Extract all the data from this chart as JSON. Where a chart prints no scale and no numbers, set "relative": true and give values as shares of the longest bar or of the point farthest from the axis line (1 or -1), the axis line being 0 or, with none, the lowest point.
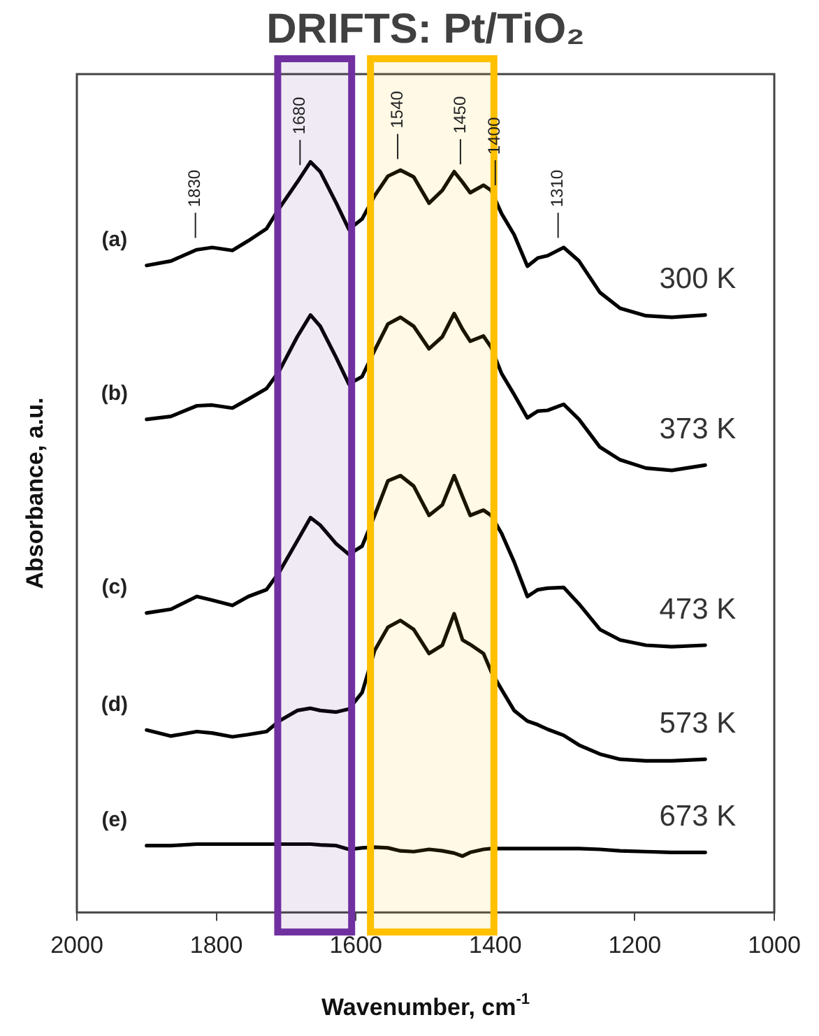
{
  "chart_data": {
    "type": "line",
    "title": "DRIFTS: Pt/TiO₂",
    "xlabel": "Wavenumber, cm$^{-1}$",
    "ylabel": "Absorbance, a.u.",
    "relative": true,
    "marker": "none",
    "line_style": "solid",
    "legend": false,
    "xlim": [
      2000,
      1000
    ],
    "xticks": [
      2000,
      1800,
      1600,
      1400,
      1200,
      1000
    ],
    "x": [
      1900,
      1865,
      1828,
      1806,
      1777,
      1754,
      1728,
      1710,
      1684,
      1665,
      1651,
      1628,
      1610,
      1591,
      1573,
      1554,
      1536,
      1517,
      1495,
      1476,
      1459,
      1447,
      1436,
      1417,
      1406,
      1391,
      1373,
      1354,
      1339,
      1325,
      1302,
      1280,
      1250,
      1221,
      1184,
      1147,
      1099
    ],
    "series": [
      {
        "name": "300 K",
        "color": "#000000",
        "values": [
          0.862,
          0.868,
          0.883,
          0.886,
          0.882,
          0.895,
          0.911,
          0.938,
          0.973,
          1.0,
          0.987,
          0.945,
          0.91,
          0.924,
          0.955,
          0.981,
          0.989,
          0.98,
          0.945,
          0.962,
          0.987,
          0.973,
          0.959,
          0.969,
          0.962,
          0.931,
          0.903,
          0.861,
          0.872,
          0.875,
          0.886,
          0.868,
          0.826,
          0.805,
          0.795,
          0.793,
          0.796
        ]
      },
      {
        "name": "373 K",
        "color": "#000000",
        "values": [
          0.657,
          0.661,
          0.675,
          0.676,
          0.672,
          0.684,
          0.698,
          0.721,
          0.767,
          0.796,
          0.781,
          0.739,
          0.704,
          0.714,
          0.749,
          0.784,
          0.793,
          0.781,
          0.751,
          0.767,
          0.798,
          0.777,
          0.761,
          0.768,
          0.753,
          0.718,
          0.69,
          0.659,
          0.668,
          0.669,
          0.677,
          0.657,
          0.62,
          0.603,
          0.592,
          0.589,
          0.596
        ]
      },
      {
        "name": "473 K",
        "color": "#000000",
        "values": [
          0.399,
          0.404,
          0.421,
          0.416,
          0.409,
          0.421,
          0.43,
          0.453,
          0.495,
          0.526,
          0.516,
          0.491,
          0.477,
          0.488,
          0.529,
          0.575,
          0.582,
          0.568,
          0.529,
          0.543,
          0.582,
          0.554,
          0.529,
          0.536,
          0.529,
          0.505,
          0.467,
          0.421,
          0.43,
          0.432,
          0.433,
          0.411,
          0.377,
          0.363,
          0.356,
          0.354,
          0.356
        ]
      },
      {
        "name": "573 K",
        "color": "#000000",
        "values": [
          0.243,
          0.235,
          0.241,
          0.239,
          0.234,
          0.237,
          0.241,
          0.255,
          0.269,
          0.272,
          0.269,
          0.267,
          0.271,
          0.293,
          0.349,
          0.38,
          0.389,
          0.377,
          0.345,
          0.356,
          0.398,
          0.363,
          0.357,
          0.345,
          0.321,
          0.297,
          0.269,
          0.255,
          0.25,
          0.244,
          0.236,
          0.223,
          0.211,
          0.204,
          0.202,
          0.202,
          0.204
        ]
      },
      {
        "name": "673 K",
        "color": "#000000",
        "values": [
          0.089,
          0.089,
          0.091,
          0.091,
          0.091,
          0.091,
          0.091,
          0.091,
          0.091,
          0.091,
          0.09,
          0.089,
          0.084,
          0.086,
          0.087,
          0.086,
          0.082,
          0.081,
          0.084,
          0.082,
          0.079,
          0.075,
          0.08,
          0.084,
          0.085,
          0.085,
          0.085,
          0.085,
          0.085,
          0.085,
          0.085,
          0.085,
          0.084,
          0.082,
          0.081,
          0.08,
          0.08
        ]
      }
    ],
    "bands": [
      {
        "axis": "x",
        "from": 1712,
        "to": 1606,
        "color": "#7030a0"
      },
      {
        "axis": "x",
        "from": 1579,
        "to": 1402,
        "color": "#ffc000"
      }
    ],
    "annotations": [
      {
        "text": "1830",
        "x": 1830,
        "y": 0.882
      },
      {
        "text": "1680",
        "x": 1680,
        "y": 0.979
      },
      {
        "text": "1540",
        "x": 1540,
        "y": 0.987
      },
      {
        "text": "1450",
        "x": 1450,
        "y": 0.98
      },
      {
        "text": "1400",
        "x": 1400,
        "y": 0.952
      },
      {
        "text": "1310",
        "x": 1310,
        "y": 0.882
      },
      {
        "text": "(a)",
        "x": 1900,
        "y": 0.862
      },
      {
        "text": "(b)",
        "x": 1900,
        "y": 0.657
      },
      {
        "text": "(c)",
        "x": 1900,
        "y": 0.399
      },
      {
        "text": "(d)",
        "x": 1900,
        "y": 0.243
      },
      {
        "text": "(e)",
        "x": 1900,
        "y": 0.089
      }
    ]
  }
}
